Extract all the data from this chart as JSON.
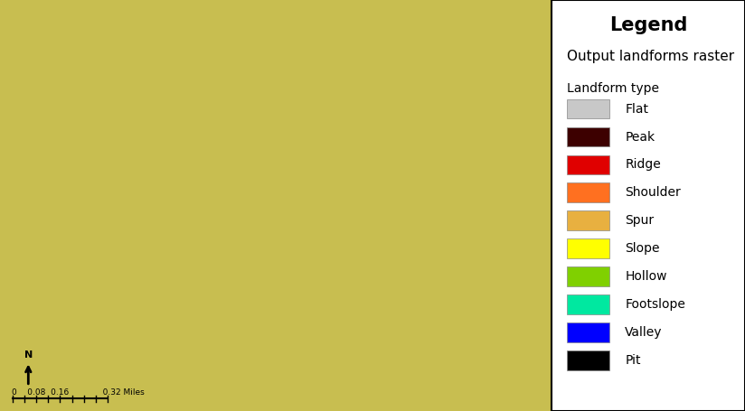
{
  "legend_title": "Legend",
  "legend_subtitle": "Output landforms raster",
  "legend_category_label": "Landform type",
  "legend_items": [
    {
      "label": "Flat",
      "color": "#c8c8c8"
    },
    {
      "label": "Peak",
      "color": "#3d0000"
    },
    {
      "label": "Ridge",
      "color": "#e00000"
    },
    {
      "label": "Shoulder",
      "color": "#ff7020"
    },
    {
      "label": "Spur",
      "color": "#e8b040"
    },
    {
      "label": "Slope",
      "color": "#ffff00"
    },
    {
      "label": "Hollow",
      "color": "#80d000"
    },
    {
      "label": "Footslope",
      "color": "#00e8a0"
    },
    {
      "label": "Valley",
      "color": "#0000ff"
    },
    {
      "label": "Pit",
      "color": "#000000"
    }
  ],
  "scalebar_values": [
    "0",
    "0.08",
    "0.16",
    "",
    "0.32 Miles"
  ],
  "map_image_placeholder": true,
  "legend_box_color": "#ffffff",
  "legend_border_color": "#000000",
  "figure_width": 8.24,
  "figure_height": 4.55,
  "dpi": 100,
  "legend_title_fontsize": 15,
  "legend_subtitle_fontsize": 11,
  "legend_category_fontsize": 10,
  "legend_item_fontsize": 10,
  "legend_title_fontweight": "bold"
}
